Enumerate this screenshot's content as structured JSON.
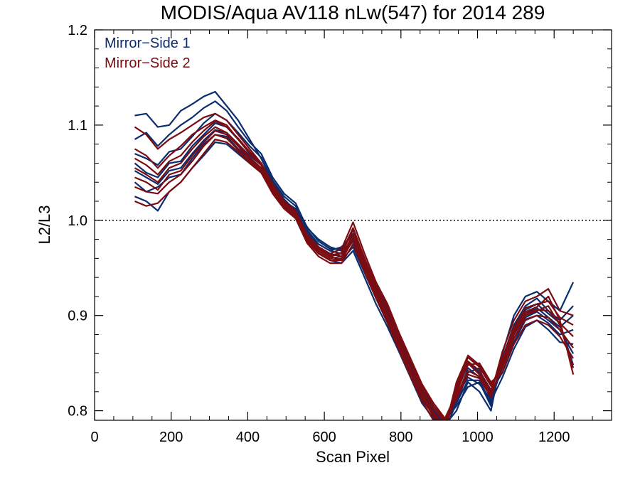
{
  "chart_data": {
    "type": "line",
    "title": "MODIS/Aqua AV118 nLw(547) for 2014 289",
    "xlabel": "Scan Pixel",
    "ylabel": "L2/L3",
    "xlim": [
      0,
      1350
    ],
    "ylim": [
      0.79,
      1.2
    ],
    "x_ticks": [
      0,
      200,
      400,
      600,
      800,
      1000,
      1200
    ],
    "x_tick_labels": [
      "0",
      "200",
      "400",
      "600",
      "800",
      "1000",
      "1200"
    ],
    "y_ticks": [
      0.8,
      0.9,
      1.0,
      1.1,
      1.2
    ],
    "y_tick_labels": [
      "0.8",
      "0.9",
      "1.0",
      "1.1",
      "1.2"
    ],
    "reference_line": {
      "y": 1.0,
      "style": "dotted"
    },
    "legend_position": "top-left",
    "colors": {
      "Mirror-Side 1": "#0b2d6e",
      "Mirror-Side 2": "#7a0c12"
    },
    "x": [
      105,
      135,
      165,
      195,
      225,
      255,
      285,
      315,
      345,
      375,
      405,
      435,
      465,
      495,
      525,
      555,
      585,
      615,
      645,
      675,
      705,
      735,
      765,
      795,
      825,
      855,
      885,
      915,
      945,
      975,
      1005,
      1035,
      1065,
      1095,
      1125,
      1155,
      1185,
      1215,
      1250
    ],
    "series": [
      {
        "name": "Mirror-Side 1",
        "values": [
          1.11,
          1.112,
          1.098,
          1.1,
          1.115,
          1.122,
          1.13,
          1.135,
          1.12,
          1.105,
          1.085,
          1.065,
          1.04,
          1.02,
          1.012,
          0.985,
          0.975,
          0.968,
          0.972,
          0.985,
          0.955,
          0.925,
          0.9,
          0.87,
          0.845,
          0.815,
          0.795,
          0.785,
          0.8,
          0.83,
          0.82,
          0.8,
          0.86,
          0.9,
          0.92,
          0.925,
          0.915,
          0.905,
          0.935
        ]
      },
      {
        "name": "Mirror-Side 1",
        "values": [
          1.085,
          1.092,
          1.078,
          1.09,
          1.1,
          1.108,
          1.118,
          1.125,
          1.115,
          1.098,
          1.082,
          1.07,
          1.045,
          1.028,
          1.018,
          0.992,
          0.98,
          0.972,
          0.968,
          0.99,
          0.96,
          0.93,
          0.91,
          0.88,
          0.852,
          0.825,
          0.805,
          0.79,
          0.805,
          0.825,
          0.83,
          0.805,
          0.855,
          0.89,
          0.91,
          0.918,
          0.905,
          0.895,
          0.91
        ]
      },
      {
        "name": "Mirror-Side 1",
        "values": [
          1.06,
          1.05,
          1.045,
          1.06,
          1.062,
          1.078,
          1.09,
          1.102,
          1.098,
          1.085,
          1.072,
          1.06,
          1.04,
          1.022,
          1.01,
          0.988,
          0.972,
          0.965,
          0.962,
          0.978,
          0.95,
          0.922,
          0.9,
          0.875,
          0.848,
          0.82,
          0.8,
          0.785,
          0.812,
          0.845,
          0.835,
          0.815,
          0.848,
          0.88,
          0.902,
          0.908,
          0.898,
          0.888,
          0.9
        ]
      },
      {
        "name": "Mirror-Side 1",
        "values": [
          1.04,
          1.03,
          1.035,
          1.045,
          1.048,
          1.065,
          1.08,
          1.09,
          1.088,
          1.075,
          1.065,
          1.055,
          1.035,
          1.018,
          1.008,
          0.985,
          0.97,
          0.962,
          0.958,
          0.972,
          0.945,
          0.918,
          0.895,
          0.868,
          0.84,
          0.812,
          0.795,
          0.782,
          0.82,
          0.85,
          0.84,
          0.82,
          0.84,
          0.872,
          0.895,
          0.9,
          0.892,
          0.88,
          0.885
        ]
      },
      {
        "name": "Mirror-Side 1",
        "values": [
          1.025,
          1.02,
          1.01,
          1.03,
          1.04,
          1.055,
          1.068,
          1.082,
          1.08,
          1.07,
          1.06,
          1.05,
          1.03,
          1.015,
          1.005,
          0.982,
          0.965,
          0.958,
          0.955,
          0.968,
          0.94,
          0.912,
          0.888,
          0.862,
          0.835,
          0.808,
          0.792,
          0.78,
          0.808,
          0.84,
          0.845,
          0.81,
          0.835,
          0.865,
          0.888,
          0.895,
          0.885,
          0.872,
          0.87
        ]
      },
      {
        "name": "Mirror-Side 1",
        "values": [
          1.052,
          1.045,
          1.038,
          1.052,
          1.055,
          1.07,
          1.084,
          1.095,
          1.092,
          1.08,
          1.068,
          1.058,
          1.038,
          1.02,
          1.012,
          0.99,
          0.975,
          0.968,
          0.965,
          0.982,
          0.952,
          0.925,
          0.902,
          0.872,
          0.846,
          0.818,
          0.798,
          0.786,
          0.815,
          0.835,
          0.828,
          0.812,
          0.845,
          0.876,
          0.898,
          0.904,
          0.895,
          0.885,
          0.86
        ]
      },
      {
        "name": "Mirror-Side 1",
        "values": [
          1.07,
          1.065,
          1.058,
          1.072,
          1.075,
          1.088,
          1.102,
          1.112,
          1.105,
          1.092,
          1.078,
          1.066,
          1.042,
          1.025,
          1.015,
          0.993,
          0.978,
          0.97,
          0.97,
          0.986,
          0.958,
          0.928,
          0.905,
          0.878,
          0.85,
          0.822,
          0.802,
          0.788,
          0.808,
          0.832,
          0.832,
          0.808,
          0.85,
          0.885,
          0.906,
          0.912,
          0.902,
          0.892,
          0.848
        ]
      },
      {
        "name": "Mirror-Side 2",
        "values": [
          1.098,
          1.09,
          1.075,
          1.085,
          1.092,
          1.1,
          1.108,
          1.112,
          1.105,
          1.09,
          1.075,
          1.06,
          1.038,
          1.02,
          1.01,
          0.985,
          0.972,
          0.965,
          0.97,
          0.998,
          0.965,
          0.935,
          0.912,
          0.882,
          0.855,
          0.828,
          0.808,
          0.792,
          0.818,
          0.85,
          0.838,
          0.818,
          0.862,
          0.895,
          0.915,
          0.92,
          0.928,
          0.905,
          0.9
        ]
      },
      {
        "name": "Mirror-Side 2",
        "values": [
          1.075,
          1.068,
          1.055,
          1.068,
          1.078,
          1.09,
          1.098,
          1.105,
          1.1,
          1.085,
          1.07,
          1.058,
          1.036,
          1.018,
          1.008,
          0.982,
          0.97,
          0.962,
          0.965,
          0.99,
          0.958,
          0.93,
          0.905,
          0.876,
          0.85,
          0.822,
          0.802,
          0.788,
          0.822,
          0.852,
          0.842,
          0.822,
          0.855,
          0.888,
          0.908,
          0.912,
          0.915,
          0.898,
          0.89
        ]
      },
      {
        "name": "Mirror-Side 2",
        "values": [
          1.055,
          1.048,
          1.04,
          1.055,
          1.06,
          1.075,
          1.088,
          1.098,
          1.092,
          1.08,
          1.066,
          1.055,
          1.034,
          1.016,
          1.006,
          0.98,
          0.968,
          0.96,
          0.962,
          0.985,
          0.955,
          0.926,
          0.9,
          0.872,
          0.845,
          0.818,
          0.798,
          0.784,
          0.826,
          0.856,
          0.846,
          0.826,
          0.85,
          0.882,
          0.902,
          0.906,
          0.905,
          0.892,
          0.878
        ]
      },
      {
        "name": "Mirror-Side 2",
        "values": [
          1.035,
          1.03,
          1.028,
          1.04,
          1.048,
          1.062,
          1.078,
          1.09,
          1.086,
          1.074,
          1.062,
          1.052,
          1.03,
          1.014,
          1.004,
          0.978,
          0.965,
          0.958,
          0.958,
          0.98,
          0.95,
          0.922,
          0.896,
          0.868,
          0.84,
          0.814,
          0.794,
          0.781,
          0.83,
          0.858,
          0.848,
          0.828,
          0.845,
          0.876,
          0.896,
          0.9,
          0.898,
          0.885,
          0.866
        ]
      },
      {
        "name": "Mirror-Side 2",
        "values": [
          1.02,
          1.015,
          1.018,
          1.03,
          1.04,
          1.055,
          1.07,
          1.085,
          1.082,
          1.072,
          1.06,
          1.05,
          1.028,
          1.012,
          1.002,
          0.976,
          0.962,
          0.955,
          0.955,
          0.975,
          0.946,
          0.918,
          0.892,
          0.864,
          0.836,
          0.81,
          0.79,
          0.78,
          0.822,
          0.848,
          0.85,
          0.83,
          0.84,
          0.87,
          0.89,
          0.895,
          0.89,
          0.878,
          0.855
        ]
      },
      {
        "name": "Mirror-Side 2",
        "values": [
          1.045,
          1.04,
          1.032,
          1.048,
          1.052,
          1.068,
          1.082,
          1.094,
          1.09,
          1.078,
          1.064,
          1.054,
          1.032,
          1.015,
          1.005,
          0.979,
          0.966,
          0.958,
          0.96,
          0.982,
          0.952,
          0.924,
          0.898,
          0.87,
          0.842,
          0.816,
          0.796,
          0.783,
          0.815,
          0.842,
          0.836,
          0.816,
          0.848,
          0.88,
          0.9,
          0.905,
          0.91,
          0.89,
          0.845
        ]
      },
      {
        "name": "Mirror-Side 2",
        "values": [
          1.065,
          1.058,
          1.048,
          1.062,
          1.068,
          1.082,
          1.094,
          1.104,
          1.098,
          1.086,
          1.072,
          1.06,
          1.037,
          1.019,
          1.009,
          0.983,
          0.971,
          0.963,
          0.966,
          0.992,
          0.96,
          0.932,
          0.908,
          0.879,
          0.852,
          0.825,
          0.805,
          0.79,
          0.812,
          0.838,
          0.834,
          0.814,
          0.852,
          0.884,
          0.904,
          0.909,
          0.92,
          0.895,
          0.838
        ]
      }
    ],
    "legend": [
      {
        "label": "Mirror−Side 1",
        "color": "#0b2d6e"
      },
      {
        "label": "Mirror−Side 2",
        "color": "#7a0c12"
      }
    ]
  }
}
